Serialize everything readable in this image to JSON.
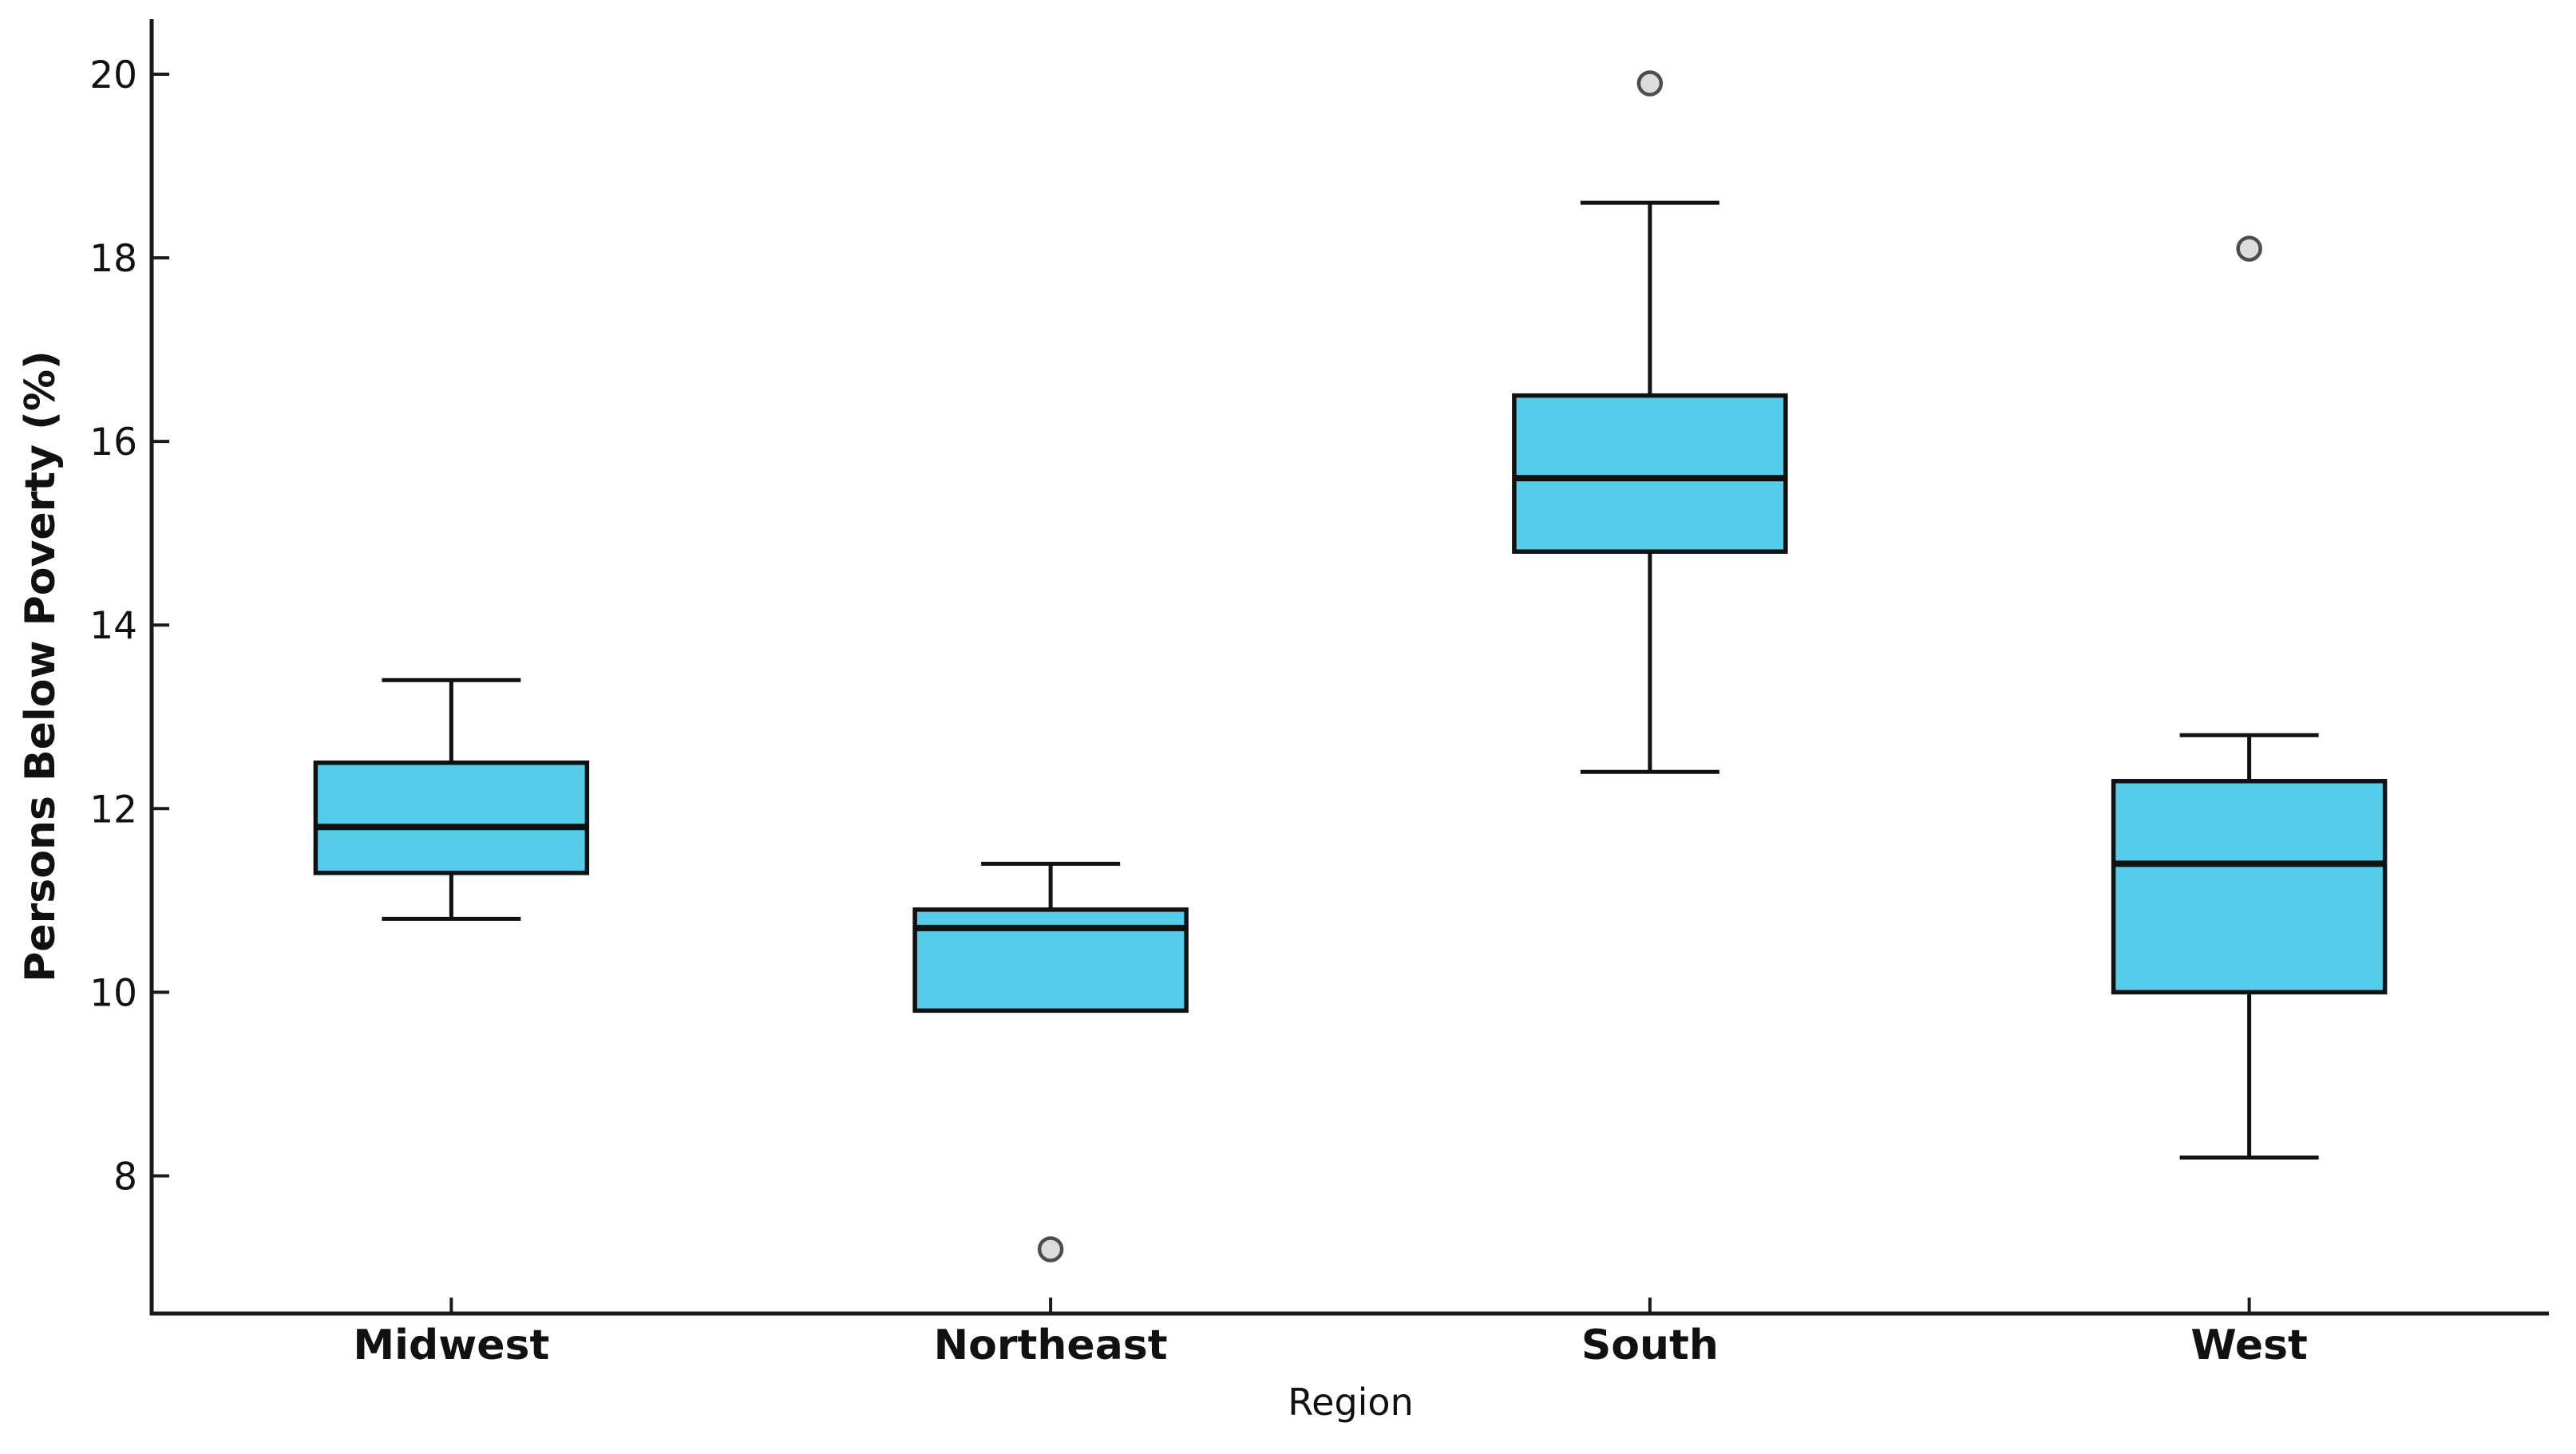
{
  "figure": {
    "background": "#ffffff"
  },
  "chart_data": {
    "type": "boxplot",
    "title": "",
    "xlabel": "Region",
    "ylabel": "Persons Below Poverty (%)",
    "categories": [
      "Midwest",
      "Northeast",
      "South",
      "West"
    ],
    "ylim": [
      6.5,
      20.6
    ],
    "yticks": [
      8,
      10,
      12,
      14,
      16,
      18,
      20
    ],
    "ytick_labels": [
      "8",
      "10",
      "12",
      "14",
      "16",
      "18",
      "20"
    ],
    "grid": false,
    "legend": null,
    "boxes": [
      {
        "label": "Midwest",
        "whislo": 10.8,
        "q1": 11.3,
        "med": 11.8,
        "q3": 12.5,
        "whishi": 13.4,
        "fliers": []
      },
      {
        "label": "Northeast",
        "whislo": 9.8,
        "q1": 9.8,
        "med": 10.7,
        "q3": 10.9,
        "whishi": 11.4,
        "fliers": [
          7.2
        ]
      },
      {
        "label": "South",
        "whislo": 12.4,
        "q1": 14.8,
        "med": 15.6,
        "q3": 16.5,
        "whishi": 18.6,
        "fliers": [
          19.9
        ]
      },
      {
        "label": "West",
        "whislo": 8.2,
        "q1": 10.0,
        "med": 11.4,
        "q3": 12.3,
        "whishi": 12.8,
        "fliers": [
          18.1
        ]
      }
    ],
    "style": {
      "box_fill": "#55CCEA",
      "box_edge": "#111111",
      "median_color": "#111111",
      "whisker_color": "#111111",
      "spine_color": "#1a1a1a",
      "flier_fill": "#DCDCDC",
      "flier_edge": "#4D4D4D",
      "text_color": "#111111"
    }
  }
}
